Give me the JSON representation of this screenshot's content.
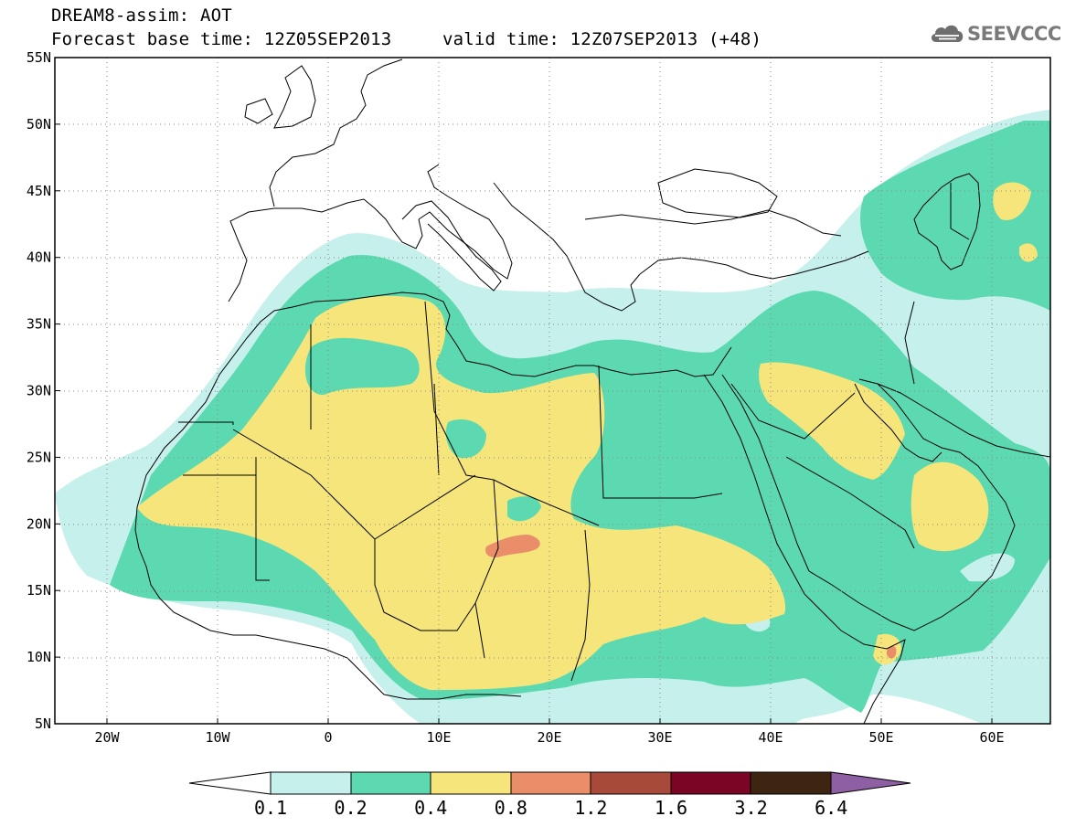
{
  "header": {
    "title_line1": "DREAM8-assim: AOT",
    "base_time": "Forecast base time: 12Z05SEP2013",
    "valid_time": "valid time: 12Z07SEP2013 (+48)"
  },
  "logo": {
    "text": "SEEVCCC",
    "icon": "cloud-icon"
  },
  "map": {
    "variable": "AOT",
    "lon_range": [
      -25,
      65
    ],
    "lat_range": [
      5,
      55
    ],
    "lat_ticks": [
      "5N",
      "10N",
      "15N",
      "20N",
      "25N",
      "30N",
      "35N",
      "40N",
      "45N",
      "50N",
      "55N"
    ],
    "lon_ticks": [
      "20W",
      "10W",
      "0",
      "10E",
      "20E",
      "30E",
      "40E",
      "50E",
      "60E"
    ],
    "gridlines": "dotted"
  },
  "colorbar": {
    "levels": [
      "0.1",
      "0.2",
      "0.4",
      "0.8",
      "1.2",
      "1.6",
      "3.2",
      "6.4"
    ],
    "colors": [
      "#ffffff",
      "#c6f0eb",
      "#5cd9b0",
      "#f5e57a",
      "#ea8d69",
      "#a84a3a",
      "#7a0525",
      "#3d2512",
      "#8e5fa3"
    ]
  },
  "colors": {
    "aot_0_1_0_2": "#c6f0eb",
    "aot_0_2_0_4": "#5cd9b0",
    "aot_0_4_0_8": "#f5e57a",
    "aot_0_8_1_2": "#ea8d69",
    "aot_1_2_1_6": "#a84a3a"
  }
}
